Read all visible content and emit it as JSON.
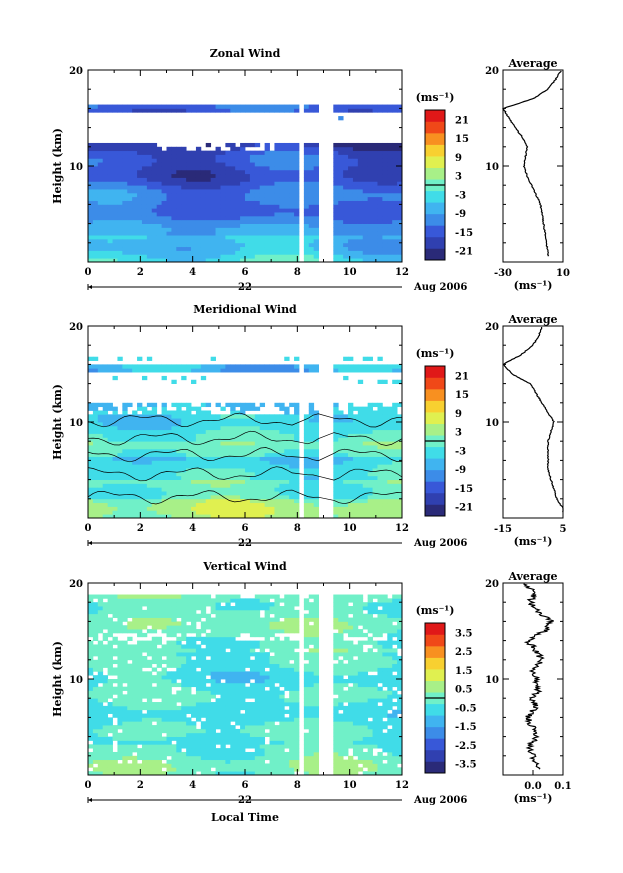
{
  "chart_data": [
    {
      "type": "heatmap",
      "title": "Zonal Wind",
      "ylabel": "Height (km)",
      "xlabel": "",
      "date_label": "22",
      "month_label": "Aug 2006",
      "xlim": [
        0,
        12
      ],
      "ylim": [
        0,
        20
      ],
      "xticks": [
        "0",
        "2",
        "4",
        "6",
        "8",
        "10",
        "12"
      ],
      "yticks": [
        "10",
        "20"
      ],
      "colorbar": {
        "unit": "(ms⁻¹)",
        "labels": [
          "21",
          "15",
          "9",
          "3",
          "-3",
          "-9",
          "-15",
          "-21"
        ],
        "range": [
          -24,
          24
        ],
        "colors": [
          "#2a2a78",
          "#3040b0",
          "#3858d8",
          "#3c8ce8",
          "#40b4f0",
          "#40dce8",
          "#70f0c8",
          "#a8f088",
          "#e0f050",
          "#f8d030",
          "#f89020",
          "#f04818",
          "#e01818"
        ]
      },
      "data_gaps": [
        [
          8.0,
          8.25
        ],
        [
          8.85,
          9.3
        ]
      ],
      "profile_rows": [
        [
          -9,
          -12,
          -14,
          -16,
          -18,
          -15,
          -14,
          -12,
          -12,
          -16,
          -17,
          -18,
          -18,
          -14,
          -12,
          -10
        ],
        [
          -8,
          -11,
          -14,
          -15,
          -16,
          -14,
          -12,
          -13,
          -12,
          -12,
          -15,
          -17,
          -19,
          -16,
          -12,
          -10
        ],
        [
          -10,
          -12,
          -15,
          -16,
          -15,
          -13,
          -12,
          -11,
          -12,
          -14,
          -16,
          -16,
          -18,
          -15,
          -11,
          -9
        ]
      ],
      "average_profile": {
        "title": "Average",
        "xlim": [
          -30,
          10
        ],
        "xticks": [
          "-30",
          "10"
        ],
        "xlabel": "(ms⁻¹)",
        "heights": [
          1,
          2,
          3,
          4,
          5,
          6,
          7,
          8,
          9,
          10,
          11,
          12,
          13,
          14,
          15,
          16,
          17,
          18,
          19,
          20
        ],
        "values": [
          0,
          -1,
          -2,
          -3,
          -4,
          -5,
          -8,
          -11,
          -14,
          -16,
          -15,
          -14,
          -17,
          -22,
          -26,
          -30,
          -10,
          0,
          5,
          9
        ]
      }
    },
    {
      "type": "heatmap",
      "title": "Meridional Wind",
      "ylabel": "Height (km)",
      "xlabel": "",
      "date_label": "22",
      "month_label": "Aug 2006",
      "xlim": [
        0,
        12
      ],
      "ylim": [
        0,
        20
      ],
      "xticks": [
        "0",
        "2",
        "4",
        "6",
        "8",
        "10",
        "12"
      ],
      "yticks": [
        "10",
        "20"
      ],
      "colorbar": {
        "unit": "(ms⁻¹)",
        "labels": [
          "21",
          "15",
          "9",
          "3",
          "-3",
          "-9",
          "-15",
          "-21"
        ],
        "range": [
          -24,
          24
        ],
        "colors": [
          "#2a2a78",
          "#3040b0",
          "#3858d8",
          "#3c8ce8",
          "#40b4f0",
          "#40dce8",
          "#70f0c8",
          "#a8f088",
          "#e0f050",
          "#f8d030",
          "#f89020",
          "#f04818",
          "#e01818"
        ]
      },
      "data_gaps": [
        [
          8.0,
          8.25
        ],
        [
          8.85,
          9.3
        ]
      ],
      "average_profile": {
        "title": "Average",
        "xlim": [
          -15,
          5
        ],
        "xticks": [
          "-15",
          "5"
        ],
        "xlabel": "(ms⁻¹)",
        "heights": [
          1,
          2,
          3,
          4,
          5,
          6,
          7,
          8,
          9,
          10,
          11,
          12,
          13,
          14,
          15,
          16,
          17,
          18,
          19,
          20
        ],
        "values": [
          5,
          3,
          2,
          1,
          0,
          0,
          0,
          0,
          1,
          2,
          0,
          -2,
          -4,
          -6,
          -12,
          -15,
          -9,
          -5,
          -3,
          -2
        ]
      }
    },
    {
      "type": "heatmap",
      "title": "Vertical Wind",
      "ylabel": "Height (km)",
      "xlabel": "Local Time",
      "date_label": "22",
      "month_label": "Aug 2006",
      "xlim": [
        0,
        12
      ],
      "ylim": [
        0,
        20
      ],
      "xticks": [
        "0",
        "2",
        "4",
        "6",
        "8",
        "10",
        "12"
      ],
      "yticks": [
        "10",
        "20"
      ],
      "colorbar": {
        "unit": "(ms⁻¹)",
        "labels": [
          "3.5",
          "2.5",
          "1.5",
          "0.5",
          "-0.5",
          "-1.5",
          "-2.5",
          "-3.5"
        ],
        "range": [
          -4,
          4
        ],
        "colors": [
          "#2a2a78",
          "#3040b0",
          "#3858d8",
          "#3c8ce8",
          "#40b4f0",
          "#40dce8",
          "#70f0c8",
          "#a8f088",
          "#e0f050",
          "#f8d030",
          "#f89020",
          "#f04818",
          "#e01818"
        ]
      },
      "data_gaps": [
        [
          8.0,
          8.25
        ],
        [
          8.85,
          9.3
        ]
      ],
      "average_profile": {
        "title": "Average",
        "xlim": [
          -0.1,
          0.1
        ],
        "xticks": [
          "0.0",
          "0.1"
        ],
        "xlabel": "(ms⁻¹)",
        "heights": [
          1,
          2,
          3,
          4,
          5,
          6,
          7,
          8,
          9,
          10,
          11,
          12,
          13,
          14,
          15,
          16,
          17,
          18,
          19,
          20
        ],
        "values": [
          0.02,
          0.0,
          -0.01,
          0.01,
          0.0,
          -0.02,
          0.01,
          0.0,
          0.02,
          0.01,
          0.0,
          0.03,
          0.01,
          -0.02,
          0.04,
          0.06,
          0.02,
          -0.01,
          0.01,
          -0.04
        ]
      }
    }
  ]
}
